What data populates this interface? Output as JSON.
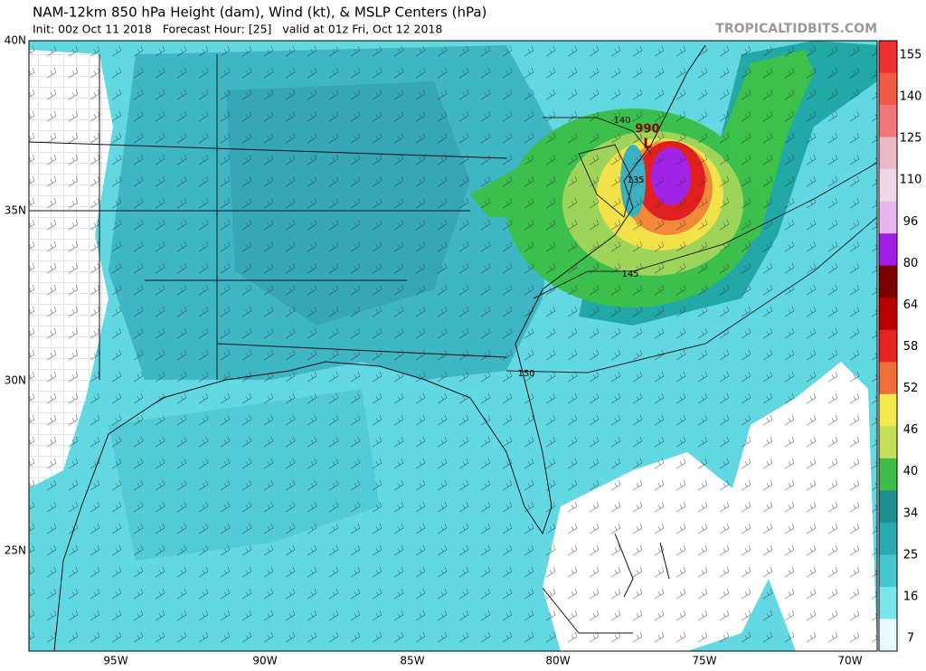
{
  "header": {
    "title": "NAM-12km 850 hPa Height (dam), Wind (kt), & MSLP Centers (hPa)",
    "subtitle": "Init: 00z Oct 11 2018   Forecast Hour: [25]   valid at 01z Fri, Oct 12 2018",
    "watermark": "TROPICALTIDBITS.COM"
  },
  "map": {
    "lat_labels": [
      "40N",
      "35N",
      "30N",
      "25N"
    ],
    "lon_labels": [
      "95W",
      "90W",
      "85W",
      "80W",
      "75W",
      "70W"
    ],
    "contour_labels": [
      "140",
      "135",
      "145",
      "150"
    ],
    "pressure_center": {
      "value": "990",
      "symbol": "L"
    }
  },
  "colorbar": {
    "labels": [
      "155",
      "140",
      "125",
      "110",
      "96",
      "80",
      "64",
      "58",
      "52",
      "46",
      "40",
      "34",
      "25",
      "16",
      "7"
    ]
  }
}
